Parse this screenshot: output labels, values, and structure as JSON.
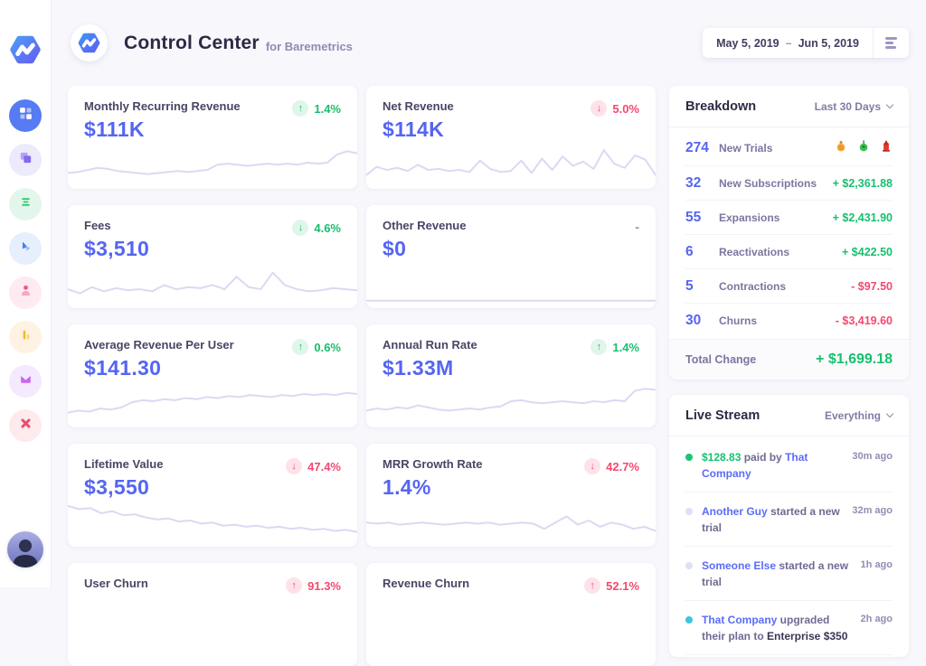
{
  "app": {
    "title": "Control Center",
    "subtitle": "for Baremetrics",
    "date_range": {
      "start": "May 5, 2019",
      "separator": "–",
      "end": "Jun 5, 2019"
    }
  },
  "colors": {
    "accent_indigo": "#5565F1",
    "positive_green": "#15C16E",
    "negative_red": "#F4486F",
    "link_blue": "#5A6CF8",
    "sparkline": "#D9DAF3",
    "active_nav": "#567BF2"
  },
  "sidebar": {
    "items": [
      {
        "name": "dashboard",
        "active": true
      },
      {
        "name": "layers",
        "active": false
      },
      {
        "name": "list",
        "active": false
      },
      {
        "name": "cursor",
        "active": false
      },
      {
        "name": "people",
        "active": false
      },
      {
        "name": "chart",
        "active": false
      },
      {
        "name": "mail",
        "active": false
      },
      {
        "name": "close",
        "active": false
      }
    ]
  },
  "metrics": [
    {
      "title": "Monthly Recurring Revenue",
      "value": "$111K",
      "direction": "up",
      "change": "1.4%",
      "tone": "green",
      "sparkline": [
        30,
        29,
        27,
        25,
        26,
        28,
        29,
        30,
        31,
        30,
        29,
        28,
        29,
        28,
        27,
        22,
        21,
        22,
        23,
        22,
        21,
        22,
        21,
        22,
        20,
        21,
        20,
        12,
        9,
        11
      ]
    },
    {
      "title": "Net Revenue",
      "value": "$114K",
      "direction": "down",
      "change": "5.0%",
      "tone": "red",
      "sparkline": [
        32,
        24,
        27,
        25,
        28,
        22,
        27,
        26,
        28,
        27,
        29,
        18,
        26,
        29,
        28,
        18,
        30,
        16,
        27,
        14,
        23,
        19,
        26,
        8,
        21,
        25,
        13,
        17,
        32
      ]
    },
    {
      "title": "Fees",
      "value": "$3,510",
      "direction": "down",
      "change": "4.6%",
      "tone": "green",
      "sparkline": [
        27,
        31,
        25,
        29,
        26,
        28,
        27,
        29,
        23,
        27,
        25,
        26,
        23,
        27,
        15,
        25,
        27,
        11,
        23,
        27,
        29,
        28,
        26,
        27,
        28
      ]
    },
    {
      "title": "Other Revenue",
      "value": "$0",
      "direction": "none",
      "change": "-",
      "tone": "none",
      "sparkline": [
        38,
        38
      ]
    },
    {
      "title": "Average Revenue Per User",
      "value": "$141.30",
      "direction": "up",
      "change": "0.6%",
      "tone": "green",
      "sparkline": [
        31,
        29,
        30,
        27,
        28,
        26,
        21,
        19,
        20,
        18,
        19,
        17,
        18,
        16,
        17,
        15,
        16,
        14,
        15,
        16,
        14,
        15,
        13,
        14,
        13,
        14,
        12,
        13
      ]
    },
    {
      "title": "Annual Run Rate",
      "value": "$1.33M",
      "direction": "up",
      "change": "1.4%",
      "tone": "green",
      "sparkline": [
        29,
        27,
        28,
        26,
        27,
        24,
        26,
        28,
        29,
        28,
        27,
        28,
        26,
        25,
        20,
        19,
        21,
        22,
        21,
        20,
        21,
        22,
        20,
        21,
        19,
        20,
        10,
        8,
        9
      ]
    },
    {
      "title": "Lifetime Value",
      "value": "$3,550",
      "direction": "down",
      "change": "47.4%",
      "tone": "red",
      "sparkline": [
        6,
        9,
        8,
        13,
        11,
        15,
        14,
        17,
        19,
        18,
        21,
        20,
        23,
        22,
        25,
        24,
        26,
        25,
        27,
        26,
        28,
        27,
        29,
        28,
        30,
        29,
        31
      ]
    },
    {
      "title": "MRR Growth Rate",
      "value": "1.4%",
      "direction": "down",
      "change": "42.7%",
      "tone": "red",
      "sparkline": [
        22,
        23,
        22,
        24,
        23,
        22,
        23,
        24,
        23,
        22,
        23,
        22,
        24,
        23,
        22,
        23,
        28,
        22,
        16,
        24,
        20,
        26,
        22,
        24,
        28,
        26,
        30
      ]
    },
    {
      "title": "User Churn",
      "value": "",
      "direction": "up",
      "change": "91.3%",
      "tone": "red",
      "sparkline": []
    },
    {
      "title": "Revenue Churn",
      "value": "",
      "direction": "up",
      "change": "52.1%",
      "tone": "red",
      "sparkline": []
    }
  ],
  "breakdown": {
    "title": "Breakdown",
    "filter": "Last 30 Days",
    "rows": [
      {
        "count": "274",
        "label": "New Trials",
        "avatars": [
          "orange",
          "green",
          "red"
        ]
      },
      {
        "count": "32",
        "label": "New Subscriptions",
        "amount": "+ $2,361.88",
        "tone": "green"
      },
      {
        "count": "55",
        "label": "Expansions",
        "amount": "+ $2,431.90",
        "tone": "green"
      },
      {
        "count": "6",
        "label": "Reactivations",
        "amount": "+ $422.50",
        "tone": "green"
      },
      {
        "count": "5",
        "label": "Contractions",
        "amount": "- $97.50",
        "tone": "red"
      },
      {
        "count": "30",
        "label": "Churns",
        "amount": "- $3,419.60",
        "tone": "red"
      }
    ],
    "total": {
      "label": "Total Change",
      "amount": "+ $1,699.18",
      "tone": "green"
    }
  },
  "live_stream": {
    "title": "Live Stream",
    "filter": "Everything",
    "items": [
      {
        "dot": "#1DC373",
        "time": "30m ago",
        "segments": [
          {
            "text": "$128.83",
            "style": "green"
          },
          {
            "text": " paid by ",
            "style": "plain"
          },
          {
            "text": "That Company",
            "style": "link"
          }
        ]
      },
      {
        "dot": "#DFDFF8",
        "time": "32m ago",
        "segments": [
          {
            "text": "Another Guy",
            "style": "link"
          },
          {
            "text": " started a new trial",
            "style": "plain"
          }
        ]
      },
      {
        "dot": "#DFDFF8",
        "time": "1h ago",
        "segments": [
          {
            "text": "Someone Else",
            "style": "link"
          },
          {
            "text": " started a new trial",
            "style": "plain"
          }
        ]
      },
      {
        "dot": "#3BC5DE",
        "time": "2h ago",
        "segments": [
          {
            "text": "That Company",
            "style": "link"
          },
          {
            "text": " upgraded their plan to ",
            "style": "plain"
          },
          {
            "text": "Enterprise $350",
            "style": "bold"
          }
        ]
      }
    ]
  }
}
